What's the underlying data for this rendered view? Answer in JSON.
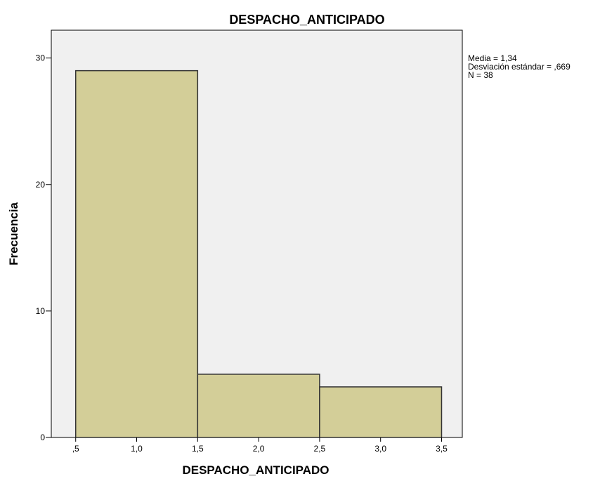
{
  "chart_data": {
    "type": "bar",
    "title": "DESPACHO_ANTICIPADO",
    "xlabel": "DESPACHO_ANTICIPADO",
    "ylabel": "Frecuencia",
    "bins": [
      {
        "from": 0.5,
        "to": 1.5,
        "value": 29
      },
      {
        "from": 1.5,
        "to": 2.5,
        "value": 5
      },
      {
        "from": 2.5,
        "to": 3.5,
        "value": 4
      }
    ],
    "xlim": [
      0.3,
      3.67
    ],
    "ylim": [
      0,
      32.2
    ],
    "x_ticks": [
      {
        "value": 0.5,
        "label": ",5"
      },
      {
        "value": 1.0,
        "label": "1,0"
      },
      {
        "value": 1.5,
        "label": "1,5"
      },
      {
        "value": 2.0,
        "label": "2,0"
      },
      {
        "value": 2.5,
        "label": "2,5"
      },
      {
        "value": 3.0,
        "label": "3,0"
      },
      {
        "value": 3.5,
        "label": "3,5"
      }
    ],
    "y_ticks": [
      {
        "value": 0,
        "label": "0"
      },
      {
        "value": 10,
        "label": "10"
      },
      {
        "value": 20,
        "label": "20"
      },
      {
        "value": 30,
        "label": "30"
      }
    ],
    "stats": [
      "Media = 1,34",
      "Desviación estándar = ,669",
      "N = 38"
    ],
    "grid": false,
    "colors": {
      "bar_fill": "#d3ce98",
      "bar_stroke": "#333333",
      "plot_background": "#f0f0f0",
      "frame": "#000000"
    }
  }
}
